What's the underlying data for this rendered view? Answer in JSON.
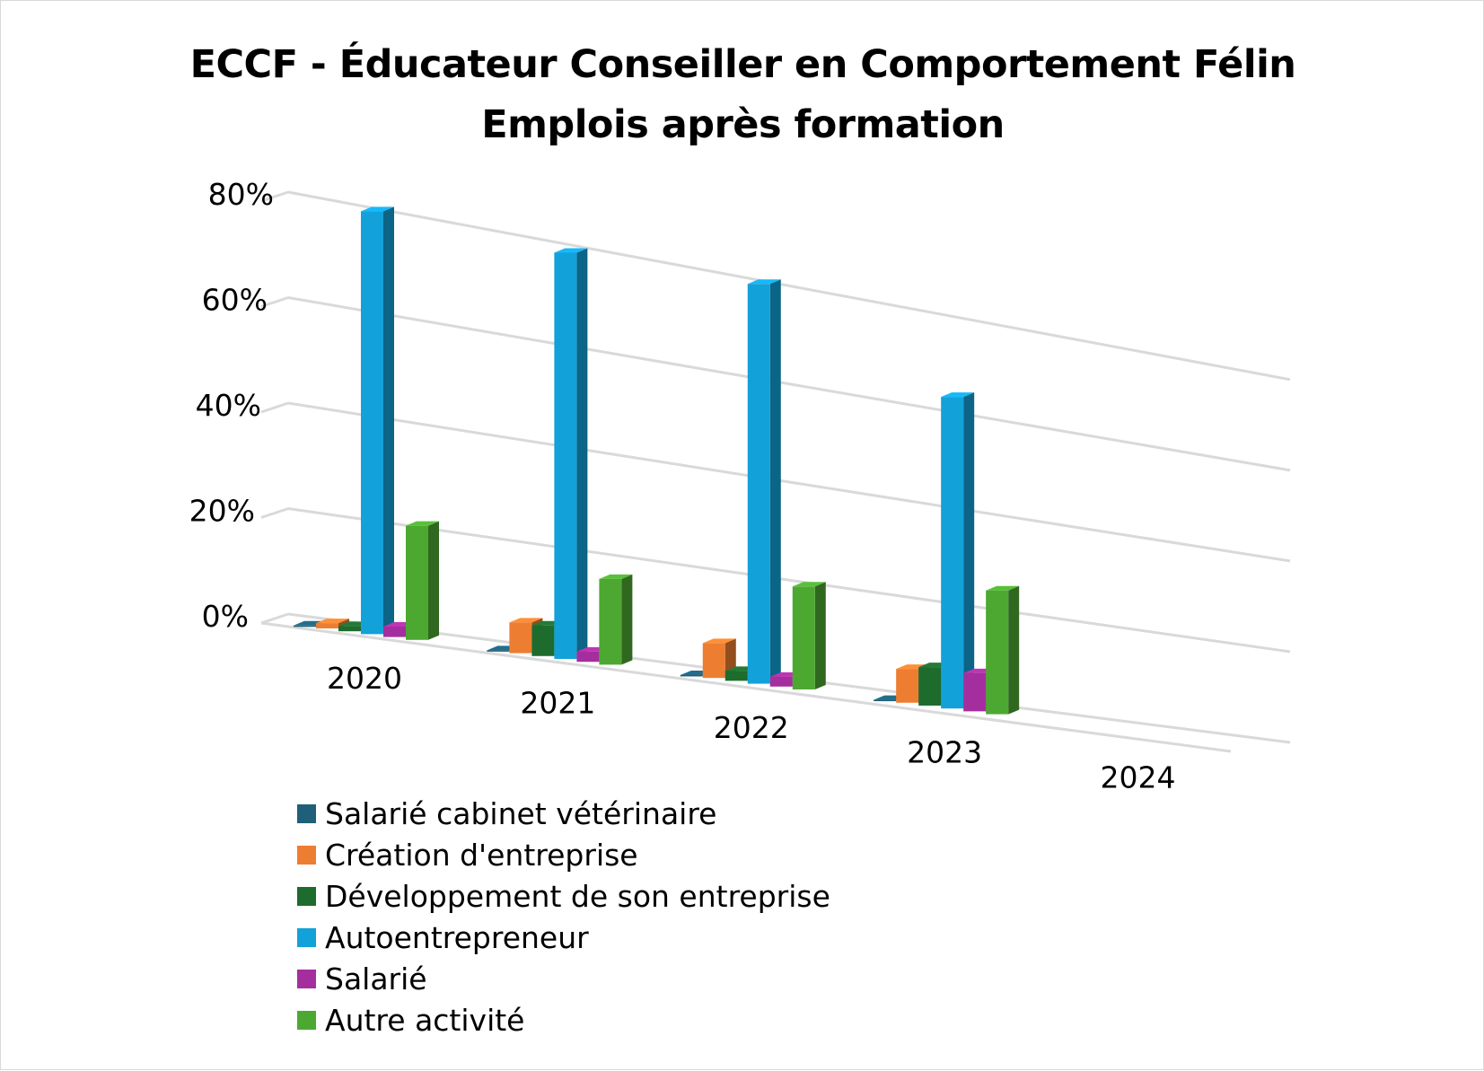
{
  "chart_data": {
    "type": "bar",
    "title": [
      "ECCF - Éducateur Conseiller en Comportement Félin",
      "Emplois après formation"
    ],
    "categories": [
      "2020",
      "2021",
      "2022",
      "2023",
      "2024"
    ],
    "y_ticks": [
      "0%",
      "20%",
      "40%",
      "60%",
      "80%"
    ],
    "ylim": [
      0,
      80
    ],
    "y_unit": "%",
    "grid": true,
    "legend_position": "bottom-left",
    "series": [
      {
        "name": "Salarié cabinet vétérinaire",
        "color": "#1f5f7a",
        "values": [
          0,
          0,
          0,
          0,
          null
        ]
      },
      {
        "name": "Création d'entreprise",
        "color": "#ed7d31",
        "values": [
          1,
          6,
          7,
          7,
          null
        ]
      },
      {
        "name": "Développement de son entreprise",
        "color": "#1e6b2e",
        "values": [
          1,
          6,
          2,
          8,
          null
        ]
      },
      {
        "name": "Autoentrepreneur",
        "color": "#13a1d9",
        "values": [
          81,
          80,
          81,
          65,
          null
        ]
      },
      {
        "name": "Salarié",
        "color": "#a52e9e",
        "values": [
          2,
          2,
          2,
          8,
          null
        ]
      },
      {
        "name": "Autre activité",
        "color": "#4da832",
        "values": [
          22,
          17,
          21,
          26,
          null
        ]
      }
    ]
  }
}
